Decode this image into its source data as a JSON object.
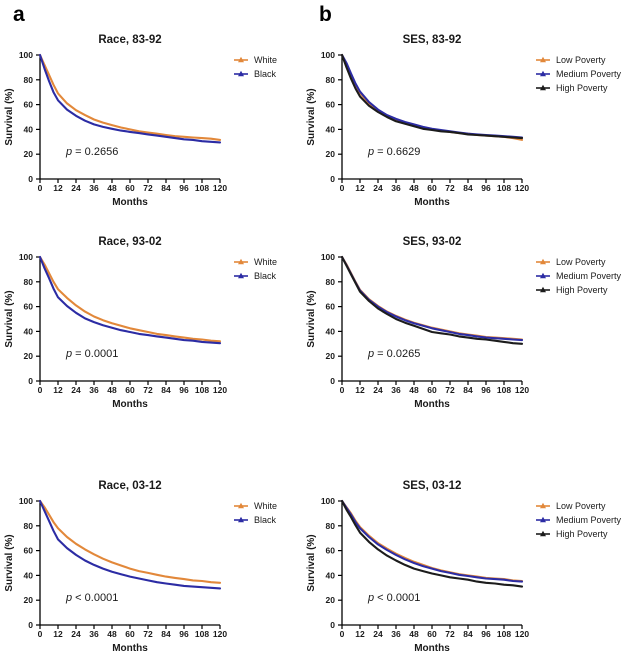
{
  "figure": {
    "panel_labels": [
      "a",
      "b"
    ],
    "background": "#ffffff",
    "axis_color": "#000000",
    "text_color": "#1a1a1a",
    "accent_colors": {
      "orange": "#E2883A",
      "blue": "#2C2CA4",
      "black": "#1C1C1C"
    }
  },
  "chart_data": [
    {
      "type": "line",
      "panel": "a",
      "title": "Race, 83-92",
      "p_label": "p = 0.2656",
      "xlabel": "Months",
      "ylabel": "Survival (%)",
      "xlim": [
        0,
        120
      ],
      "ylim": [
        0,
        100
      ],
      "xticks": [
        0,
        12,
        24,
        36,
        48,
        60,
        72,
        84,
        96,
        108,
        120
      ],
      "yticks": [
        0,
        20,
        40,
        60,
        80,
        100
      ],
      "grid": false,
      "legend_position": "right",
      "x": [
        0,
        3,
        6,
        9,
        12,
        18,
        24,
        30,
        36,
        42,
        48,
        54,
        60,
        66,
        72,
        78,
        84,
        90,
        96,
        102,
        108,
        114,
        120
      ],
      "series": [
        {
          "name": "White",
          "color": "#E2883A",
          "values": [
            100,
            92,
            84,
            76,
            69,
            61,
            55.5,
            51.5,
            48,
            45.5,
            43.5,
            41.5,
            40,
            38.5,
            37.5,
            36.5,
            35.5,
            34.5,
            34,
            33.5,
            33,
            32.5,
            31.5
          ]
        },
        {
          "name": "Black",
          "color": "#2C2CA4",
          "values": [
            100,
            89,
            79,
            70,
            63.5,
            56,
            51,
            47,
            44,
            42,
            40.5,
            39,
            38,
            37,
            36,
            35,
            34,
            33,
            32,
            31.5,
            30.5,
            30,
            29.5
          ]
        }
      ]
    },
    {
      "type": "line",
      "panel": "b",
      "title": "SES, 83-92",
      "p_label": "p = 0.6629",
      "xlabel": "Months",
      "ylabel": "Survival (%)",
      "xlim": [
        0,
        120
      ],
      "ylim": [
        0,
        100
      ],
      "xticks": [
        0,
        12,
        24,
        36,
        48,
        60,
        72,
        84,
        96,
        108,
        120
      ],
      "yticks": [
        0,
        20,
        40,
        60,
        80,
        100
      ],
      "grid": false,
      "legend_position": "right",
      "x": [
        0,
        3,
        6,
        9,
        12,
        18,
        24,
        30,
        36,
        42,
        48,
        54,
        60,
        66,
        72,
        78,
        84,
        90,
        96,
        102,
        108,
        114,
        120
      ],
      "series": [
        {
          "name": "Low Poverty",
          "color": "#E2883A",
          "values": [
            100,
            93,
            84,
            76,
            69.5,
            61,
            55,
            51,
            48,
            45.5,
            43.5,
            41.5,
            40,
            39,
            38,
            37,
            36.5,
            35.5,
            35,
            34.5,
            34,
            33,
            31.5
          ]
        },
        {
          "name": "Medium Poverty",
          "color": "#2C2CA4",
          "values": [
            100,
            93.5,
            85,
            77,
            70.5,
            62,
            56,
            51.5,
            48.5,
            46,
            44,
            42,
            40.5,
            39.5,
            38.5,
            37.5,
            36.5,
            36,
            35.5,
            35,
            34.5,
            34,
            33.5
          ]
        },
        {
          "name": "High Poverty",
          "color": "#1C1C1C",
          "values": [
            100,
            90,
            81,
            73,
            66.5,
            59,
            54,
            50,
            46.5,
            44.5,
            42.5,
            40.5,
            39.5,
            38.5,
            38,
            37,
            36,
            35.5,
            35,
            34.5,
            34,
            33.5,
            33
          ]
        }
      ]
    },
    {
      "type": "line",
      "panel": "a",
      "title": "Race, 93-02",
      "p_label": "p = 0.0001",
      "xlabel": "Months",
      "ylabel": "Survival (%)",
      "xlim": [
        0,
        120
      ],
      "ylim": [
        0,
        100
      ],
      "xticks": [
        0,
        12,
        24,
        36,
        48,
        60,
        72,
        84,
        96,
        108,
        120
      ],
      "yticks": [
        0,
        20,
        40,
        60,
        80,
        100
      ],
      "grid": false,
      "legend_position": "right",
      "x": [
        0,
        3,
        6,
        9,
        12,
        18,
        24,
        30,
        36,
        42,
        48,
        54,
        60,
        66,
        72,
        78,
        84,
        90,
        96,
        102,
        108,
        114,
        120
      ],
      "series": [
        {
          "name": "White",
          "color": "#E2883A",
          "values": [
            100,
            94,
            87,
            80,
            74,
            67,
            61,
            56,
            52,
            49,
            46.5,
            44.5,
            42.5,
            41,
            39.5,
            38,
            37,
            36,
            35,
            34,
            33.5,
            32.5,
            32
          ]
        },
        {
          "name": "Black",
          "color": "#2C2CA4",
          "values": [
            100,
            91,
            83,
            74.5,
            67.5,
            60.5,
            55,
            50.5,
            47.5,
            45,
            43,
            41,
            39.5,
            38,
            37,
            36,
            35,
            34,
            33,
            32.5,
            31.5,
            31,
            30.5
          ]
        }
      ]
    },
    {
      "type": "line",
      "panel": "b",
      "title": "SES, 93-02",
      "p_label": "p = 0.0265",
      "xlabel": "Months",
      "ylabel": "Survival (%)",
      "xlim": [
        0,
        120
      ],
      "ylim": [
        0,
        100
      ],
      "xticks": [
        0,
        12,
        24,
        36,
        48,
        60,
        72,
        84,
        96,
        108,
        120
      ],
      "yticks": [
        0,
        20,
        40,
        60,
        80,
        100
      ],
      "grid": false,
      "legend_position": "right",
      "x": [
        0,
        3,
        6,
        9,
        12,
        18,
        24,
        30,
        36,
        42,
        48,
        54,
        60,
        66,
        72,
        78,
        84,
        90,
        96,
        102,
        108,
        114,
        120
      ],
      "series": [
        {
          "name": "Low Poverty",
          "color": "#E2883A",
          "values": [
            100,
            94,
            87,
            80,
            73.5,
            66,
            60.5,
            56,
            52.5,
            49.5,
            47,
            45,
            43,
            41.5,
            40,
            38.5,
            37.5,
            36.5,
            35.5,
            35,
            34.5,
            34,
            33.5
          ]
        },
        {
          "name": "Medium Poverty",
          "color": "#2C2CA4",
          "values": [
            100,
            93.5,
            86.5,
            79.5,
            73,
            65.5,
            60,
            55.5,
            52,
            49,
            46.5,
            44.5,
            42.5,
            41,
            39.5,
            38,
            37,
            36,
            35,
            34.5,
            34,
            33.5,
            33
          ]
        },
        {
          "name": "High Poverty",
          "color": "#1C1C1C",
          "values": [
            100,
            93,
            86,
            79,
            72,
            64.5,
            58.5,
            54,
            50,
            47,
            44.5,
            42,
            39.5,
            38.5,
            37.5,
            36,
            35,
            34,
            33.5,
            32.5,
            31.5,
            30.5,
            30
          ]
        }
      ]
    },
    {
      "type": "line",
      "panel": "a",
      "title": "Race, 03-12",
      "p_label": "p < 0.0001",
      "xlabel": "Months",
      "ylabel": "Survival (%)",
      "xlim": [
        0,
        120
      ],
      "ylim": [
        0,
        100
      ],
      "xticks": [
        0,
        12,
        24,
        36,
        48,
        60,
        72,
        84,
        96,
        108,
        120
      ],
      "yticks": [
        0,
        20,
        40,
        60,
        80,
        100
      ],
      "grid": false,
      "legend_position": "right",
      "x": [
        0,
        3,
        6,
        9,
        12,
        18,
        24,
        30,
        36,
        42,
        48,
        54,
        60,
        66,
        72,
        78,
        84,
        90,
        96,
        102,
        108,
        114,
        120
      ],
      "series": [
        {
          "name": "White",
          "color": "#E2883A",
          "values": [
            100,
            95,
            89,
            83,
            78,
            71,
            65.5,
            61,
            57,
            53.5,
            50.5,
            48,
            45.5,
            43.5,
            42,
            40.5,
            39,
            38,
            37,
            36,
            35.5,
            34.5,
            34
          ]
        },
        {
          "name": "Black",
          "color": "#2C2CA4",
          "values": [
            100,
            92,
            84,
            76,
            69,
            62,
            56.5,
            52,
            48.5,
            45.5,
            43,
            41,
            39,
            37.5,
            36,
            34.5,
            33.5,
            32.5,
            31.5,
            31,
            30.5,
            30,
            29.5
          ]
        }
      ]
    },
    {
      "type": "line",
      "panel": "b",
      "title": "SES, 03-12",
      "p_label": "p < 0.0001",
      "xlabel": "Months",
      "ylabel": "Survival (%)",
      "xlim": [
        0,
        120
      ],
      "ylim": [
        0,
        100
      ],
      "xticks": [
        0,
        12,
        24,
        36,
        48,
        60,
        72,
        84,
        96,
        108,
        120
      ],
      "yticks": [
        0,
        20,
        40,
        60,
        80,
        100
      ],
      "grid": false,
      "legend_position": "right",
      "x": [
        0,
        3,
        6,
        9,
        12,
        18,
        24,
        30,
        36,
        42,
        48,
        54,
        60,
        66,
        72,
        78,
        84,
        90,
        96,
        102,
        108,
        114,
        120
      ],
      "series": [
        {
          "name": "Low Poverty",
          "color": "#E2883A",
          "values": [
            100,
            95,
            90,
            84,
            79,
            72,
            66,
            61.5,
            57.5,
            54,
            51,
            48.5,
            46,
            44,
            42.5,
            41,
            40,
            39,
            38,
            37.5,
            37,
            36,
            35.5
          ]
        },
        {
          "name": "Medium Poverty",
          "color": "#2C2CA4",
          "values": [
            100,
            94.5,
            89,
            83,
            78,
            71,
            65,
            60.5,
            56.5,
            53,
            50,
            47.5,
            45.5,
            43.5,
            42,
            40.5,
            39.5,
            38.5,
            37.5,
            37,
            36.5,
            35.5,
            35
          ]
        },
        {
          "name": "High Poverty",
          "color": "#1C1C1C",
          "values": [
            100,
            93,
            87,
            80.5,
            74.5,
            67,
            61,
            56,
            52,
            48.5,
            45.5,
            43.5,
            41.5,
            40,
            38.5,
            37.5,
            36.5,
            35,
            34,
            33.5,
            32.5,
            32,
            31
          ]
        }
      ]
    }
  ]
}
